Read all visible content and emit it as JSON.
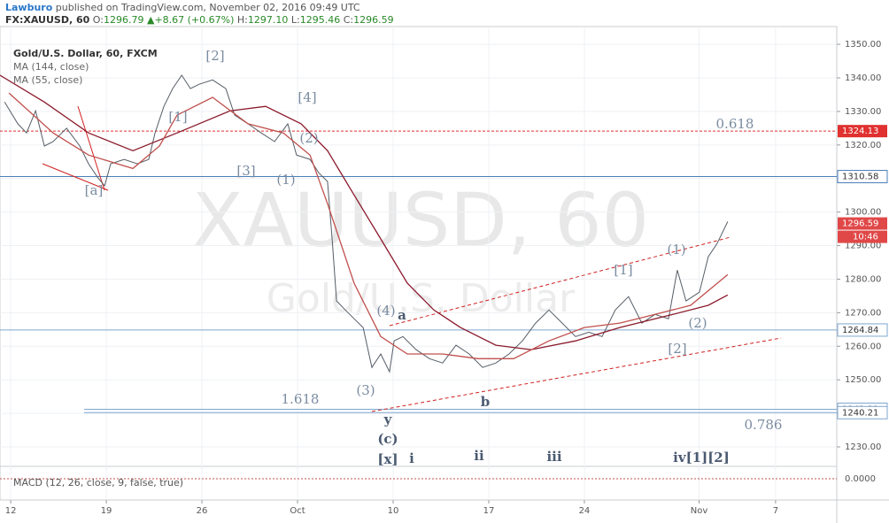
{
  "header": {
    "author": "Lawburo",
    "published": "published on TradingView.com, November 02, 2016 09:49 UTC",
    "symbol": "FX:XAUUSD, 60",
    "open_label": "O:",
    "open": "1296.79",
    "arrow": "▲",
    "change": "+8.67 (+0.67%)",
    "high_label": "H:",
    "high": "1297.10",
    "low_label": "L:",
    "low": "1295.46",
    "close_label": "C:",
    "close": "1296.59"
  },
  "chart_data": {
    "type": "line",
    "watermark": "XAUUSD, 60",
    "watermark_sub": "Gold/U.S. Dollar",
    "xlim": [
      -0.56,
      43.2
    ],
    "ylim": [
      1224.2,
      1355.3
    ],
    "xticks": [
      {
        "value": 0,
        "label": "12"
      },
      {
        "value": 5,
        "label": "19"
      },
      {
        "value": 10,
        "label": "26"
      },
      {
        "value": 15,
        "label": "Oct"
      },
      {
        "value": 20,
        "label": "10"
      },
      {
        "value": 25,
        "label": "17"
      },
      {
        "value": 30,
        "label": "24"
      },
      {
        "value": 36,
        "label": "Nov"
      },
      {
        "value": 40,
        "label": "7"
      }
    ],
    "yticks": [
      {
        "value": 1230,
        "label": "1230.00"
      },
      {
        "value": 1240,
        "label": "1240.00"
      },
      {
        "value": 1250,
        "label": "1250.00"
      },
      {
        "value": 1260,
        "label": "1260.00"
      },
      {
        "value": 1270,
        "label": "1270.00"
      },
      {
        "value": 1280,
        "label": "1280.00"
      },
      {
        "value": 1290,
        "label": "1290.00"
      },
      {
        "value": 1300,
        "label": "1300.00"
      },
      {
        "value": 1310,
        "label": "1310.00"
      },
      {
        "value": 1320,
        "label": "1320.00"
      },
      {
        "value": 1330,
        "label": "1330.00"
      },
      {
        "value": 1340,
        "label": "1340.00"
      },
      {
        "value": 1350,
        "label": "1350.00"
      }
    ],
    "grid": true,
    "series": [
      {
        "name": "Gold/U.S. Dollar, 60, FXCM",
        "color": "#555d66",
        "x": [
          -0.32,
          0.37,
          0.83,
          1.3,
          1.76,
          2.22,
          2.92,
          3.61,
          4.07,
          4.54,
          4.91,
          5.23,
          5.93,
          6.62,
          7.22,
          7.55,
          8.01,
          8.47,
          8.94,
          9.4,
          9.86,
          10.56,
          11.25,
          11.71,
          12.41,
          13.1,
          13.8,
          14.49,
          14.95,
          15.65,
          16.11,
          16.57,
          16.81,
          17.04,
          17.5,
          17.96,
          18.43,
          18.89,
          19.35,
          19.81,
          20.05,
          20.51,
          21.2,
          21.9,
          22.59,
          23.29,
          23.98,
          24.68,
          25.37,
          26.06,
          26.76,
          27.45,
          28.15,
          28.84,
          29.54,
          30.23,
          30.93,
          31.62,
          32.31,
          33.01,
          33.7,
          34.4,
          34.86,
          35.32,
          36.02,
          36.48,
          36.94,
          37.5
        ],
        "values": [
          1332.8,
          1326.3,
          1323.6,
          1330.2,
          1319.7,
          1321.0,
          1325.0,
          1319.7,
          1314.4,
          1310.4,
          1307.8,
          1314.4,
          1315.7,
          1314.4,
          1315.7,
          1323.6,
          1331.5,
          1336.8,
          1340.8,
          1336.8,
          1338.1,
          1339.4,
          1336.8,
          1328.9,
          1326.3,
          1323.6,
          1321.0,
          1326.3,
          1317.0,
          1315.7,
          1311.7,
          1309.1,
          1292.0,
          1273.5,
          1270.8,
          1268.2,
          1265.6,
          1253.7,
          1257.7,
          1252.4,
          1261.6,
          1262.9,
          1259.0,
          1256.3,
          1255.0,
          1260.3,
          1257.7,
          1253.7,
          1255.0,
          1257.7,
          1261.6,
          1266.9,
          1270.8,
          1266.9,
          1262.9,
          1264.2,
          1262.9,
          1270.8,
          1274.8,
          1266.9,
          1269.5,
          1268.2,
          1282.7,
          1273.5,
          1276.1,
          1286.7,
          1290.6,
          1297.2
        ]
      },
      {
        "name": "MA (144, close)",
        "color": "#8b1a2b",
        "x": [
          -0.56,
          1.76,
          4.07,
          6.39,
          8.7,
          11.48,
          13.33,
          15.19,
          16.57,
          17.96,
          19.35,
          20.74,
          22.13,
          23.52,
          25.37,
          27.22,
          29.54,
          31.85,
          34.63,
          36.48,
          37.5
        ],
        "values": [
          1340.8,
          1332.8,
          1323.6,
          1318.3,
          1323.6,
          1330.2,
          1331.5,
          1326.3,
          1318.3,
          1305.1,
          1292.0,
          1278.8,
          1270.8,
          1265.6,
          1260.3,
          1259.0,
          1261.6,
          1265.6,
          1269.5,
          1272.2,
          1275.3
        ]
      },
      {
        "name": "MA (55, close)",
        "color": "#c0504d",
        "x": [
          -0.09,
          2.22,
          4.07,
          6.39,
          7.78,
          8.7,
          10.56,
          12.41,
          14.26,
          15.65,
          16.57,
          17.96,
          19.35,
          20.74,
          22.59,
          24.44,
          26.3,
          28.15,
          30.0,
          31.85,
          33.7,
          35.56,
          37.5
        ],
        "values": [
          1335.5,
          1323.6,
          1317.0,
          1313.0,
          1319.7,
          1328.9,
          1334.2,
          1326.3,
          1323.6,
          1317.0,
          1302.5,
          1278.8,
          1262.9,
          1257.7,
          1257.7,
          1256.3,
          1256.3,
          1261.6,
          1265.6,
          1266.9,
          1269.5,
          1272.2,
          1281.4
        ]
      }
    ],
    "levels": [
      {
        "value": 1324.13,
        "color": "#e03030"
      },
      {
        "value": 1310.58,
        "color": "#4a7fb5"
      },
      {
        "value": 1264.84,
        "color": "#7fa7cf"
      },
      {
        "value": 1241.21,
        "color": "#7fa7cf"
      },
      {
        "value": 1240.21,
        "color": "#7fa7cf"
      }
    ],
    "last_price": 1296.59,
    "countdown": "10:46",
    "annotations": [
      "[2]",
      "[1]",
      "[4]",
      "[3]",
      "(2)",
      "(1)",
      "[a]",
      "(4)",
      "a",
      "(3)",
      "y",
      "(c)",
      "[x]",
      "i",
      "ii",
      "iii",
      "b",
      "[1]",
      "(1)",
      "(2)",
      "[2]",
      "iv[1][2]",
      "0.618",
      "1.618",
      "0.786"
    ],
    "macd_label": "MACD (12, 26, close, 9, false, true)",
    "macd_tick": "0.0000"
  }
}
